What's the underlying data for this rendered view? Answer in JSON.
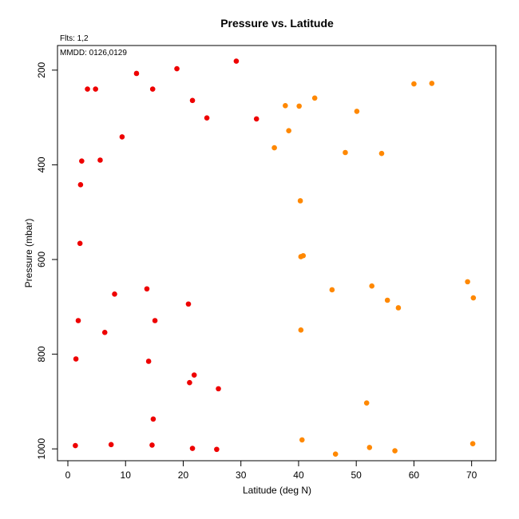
{
  "chart_data": {
    "type": "scatter",
    "title": "Pressure vs. Latitude",
    "xlabel": "Latitude (deg N)",
    "ylabel": "Pressure (mbar)",
    "annotations": [
      "Flts: 1,2",
      "MMDD: 0126,0129"
    ],
    "xlim": [
      -1.8,
      74.2
    ],
    "ylim": [
      1025,
      148
    ],
    "y_reversed": true,
    "x_ticks": [
      0,
      10,
      20,
      30,
      40,
      50,
      60,
      70
    ],
    "y_ticks": [
      200,
      400,
      600,
      800,
      1000
    ],
    "grid": false,
    "series": [
      {
        "color": "#ee0000",
        "points": [
          [
            29.2,
            181
          ],
          [
            18.9,
            197
          ],
          [
            11.9,
            207
          ],
          [
            3.4,
            240
          ],
          [
            4.8,
            240
          ],
          [
            14.7,
            240
          ],
          [
            21.6,
            264
          ],
          [
            24.1,
            301
          ],
          [
            32.7,
            303
          ],
          [
            9.4,
            341
          ],
          [
            2.4,
            392
          ],
          [
            5.6,
            390
          ],
          [
            2.2,
            442
          ],
          [
            2.1,
            566
          ],
          [
            13.7,
            662
          ],
          [
            8.1,
            673
          ],
          [
            20.9,
            694
          ],
          [
            1.8,
            729
          ],
          [
            15.1,
            729
          ],
          [
            6.4,
            754
          ],
          [
            1.4,
            810
          ],
          [
            14.0,
            815
          ],
          [
            21.9,
            844
          ],
          [
            21.1,
            860
          ],
          [
            26.1,
            873
          ],
          [
            14.8,
            937
          ],
          [
            1.3,
            993
          ],
          [
            7.5,
            991
          ],
          [
            14.6,
            992
          ],
          [
            21.6,
            999
          ],
          [
            25.8,
            1001
          ]
        ]
      },
      {
        "color": "#ff8800",
        "points": [
          [
            63.1,
            228
          ],
          [
            60.0,
            229
          ],
          [
            42.8,
            259
          ],
          [
            37.7,
            275
          ],
          [
            40.1,
            276
          ],
          [
            50.1,
            287
          ],
          [
            38.3,
            328
          ],
          [
            35.8,
            364
          ],
          [
            48.1,
            374
          ],
          [
            54.4,
            376
          ],
          [
            40.3,
            476
          ],
          [
            40.4,
            594
          ],
          [
            40.8,
            592
          ],
          [
            69.3,
            647
          ],
          [
            52.7,
            656
          ],
          [
            45.8,
            664
          ],
          [
            70.3,
            681
          ],
          [
            55.4,
            686
          ],
          [
            57.3,
            702
          ],
          [
            40.4,
            749
          ],
          [
            51.8,
            903
          ],
          [
            40.6,
            981
          ],
          [
            70.2,
            989
          ],
          [
            52.3,
            997
          ],
          [
            56.7,
            1004
          ],
          [
            46.4,
            1011
          ]
        ]
      }
    ]
  }
}
